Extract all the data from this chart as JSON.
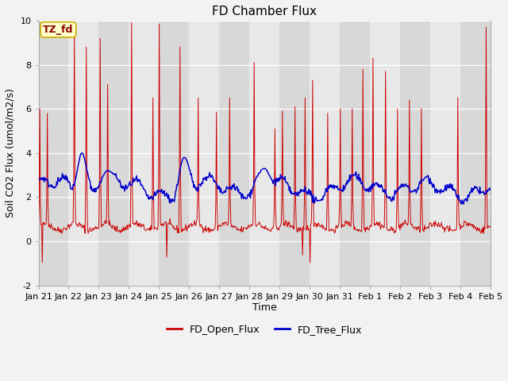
{
  "title": "FD Chamber Flux",
  "ylabel": "Soil CO2 Flux (umol/m2/s)",
  "xlabel": "Time",
  "ylim": [
    -2,
    10
  ],
  "yticks": [
    -2,
    0,
    2,
    4,
    6,
    8,
    10
  ],
  "date_labels": [
    "Jan 21",
    "Jan 22",
    "Jan 23",
    "Jan 24",
    "Jan 25",
    "Jan 26",
    "Jan 27",
    "Jan 28",
    "Jan 29",
    "Jan 30",
    "Jan 31",
    "Feb 1",
    "Feb 2",
    "Feb 3",
    "Feb 4",
    "Feb 5"
  ],
  "annotation_text": "TZ_fd",
  "annotation_color": "#8b0000",
  "annotation_bg": "#ffffcc",
  "annotation_border": "#ccaa00",
  "red_color": "#cc0000",
  "blue_color": "#0000cc",
  "plot_bg": "#e8e8e8",
  "band_light": "#e8e8e8",
  "band_dark": "#d8d8d8",
  "fig_bg": "#f2f2f2",
  "legend_red": "FD_Open_Flux",
  "legend_blue": "FD_Tree_Flux",
  "title_fontsize": 11,
  "label_fontsize": 9,
  "tick_fontsize": 8
}
